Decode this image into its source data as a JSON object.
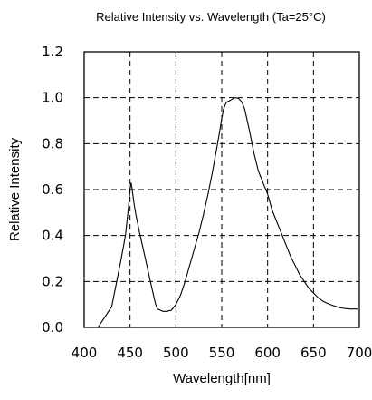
{
  "chart_data": {
    "type": "line",
    "title": "Relative Intensity vs. Wavelength (Ta=25°C)",
    "xlabel": "Wavelength[nm]",
    "ylabel": "Relative Intensity",
    "xlim": [
      400,
      700
    ],
    "ylim": [
      0,
      1.2
    ],
    "x_ticks": [
      "400",
      "450",
      "500",
      "550",
      "600",
      "650",
      "700"
    ],
    "y_ticks": [
      "0.0",
      "0.2",
      "0.4",
      "0.6",
      "0.8",
      "1.0",
      "1.2"
    ],
    "grid": true,
    "series": [
      {
        "x": [
          415,
          420,
          430,
          440,
          445,
          448,
          450,
          451,
          452,
          454,
          456,
          460,
          465,
          470,
          475,
          478,
          480,
          483,
          486,
          490,
          495,
          500,
          505,
          510,
          515,
          520,
          525,
          530,
          535,
          540,
          545,
          548,
          550,
          552,
          555,
          560,
          563,
          565,
          568,
          570,
          572,
          575,
          580,
          585,
          590,
          595,
          600,
          605,
          610,
          615,
          620,
          625,
          630,
          635,
          640,
          645,
          650,
          655,
          660,
          665,
          670,
          675,
          680,
          685,
          690,
          695,
          698
        ],
        "y": [
          0.0,
          0.03,
          0.09,
          0.29,
          0.4,
          0.51,
          0.6,
          0.63,
          0.61,
          0.55,
          0.5,
          0.42,
          0.33,
          0.24,
          0.15,
          0.1,
          0.08,
          0.075,
          0.07,
          0.07,
          0.075,
          0.1,
          0.14,
          0.2,
          0.27,
          0.34,
          0.41,
          0.49,
          0.58,
          0.68,
          0.79,
          0.86,
          0.91,
          0.95,
          0.98,
          0.99,
          0.998,
          1.0,
          0.998,
          0.99,
          0.98,
          0.95,
          0.86,
          0.76,
          0.68,
          0.63,
          0.58,
          0.51,
          0.46,
          0.41,
          0.36,
          0.31,
          0.27,
          0.23,
          0.2,
          0.17,
          0.15,
          0.13,
          0.115,
          0.105,
          0.097,
          0.09,
          0.085,
          0.082,
          0.08,
          0.08,
          0.08
        ]
      }
    ]
  }
}
